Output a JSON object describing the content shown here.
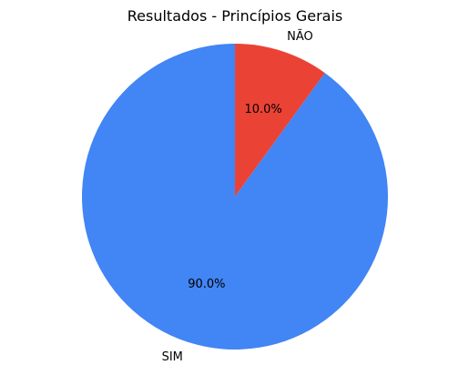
{
  "chart_data": {
    "type": "pie",
    "title": "Resultados - Princípios Gerais",
    "start_angle_deg": 90,
    "direction": "clockwise",
    "slices": [
      {
        "label": "NÃO",
        "value": 10.0,
        "pct_label": "10.0%",
        "color": "#ea4335"
      },
      {
        "label": "SIM",
        "value": 90.0,
        "pct_label": "90.0%",
        "color": "#4285f4"
      }
    ]
  }
}
